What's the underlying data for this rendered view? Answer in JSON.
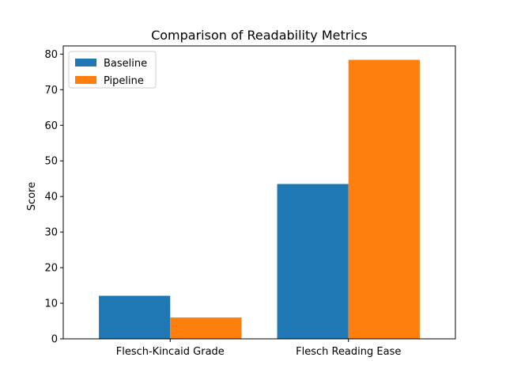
{
  "chart_data": {
    "type": "bar",
    "title": "Comparison of Readability Metrics",
    "xlabel": "",
    "ylabel": "Score",
    "categories": [
      "Flesch-Kincaid Grade",
      "Flesch Reading Ease"
    ],
    "series": [
      {
        "name": "Baseline",
        "values": [
          12.1,
          43.5
        ],
        "color": "#1f77b4"
      },
      {
        "name": "Pipeline",
        "values": [
          6.0,
          78.4
        ],
        "color": "#ff7f0e"
      }
    ],
    "ylim": [
      0,
      82.3
    ],
    "yticks": [
      0,
      10,
      20,
      30,
      40,
      50,
      60,
      70,
      80
    ],
    "grid": false,
    "legend_position": "top-left"
  }
}
